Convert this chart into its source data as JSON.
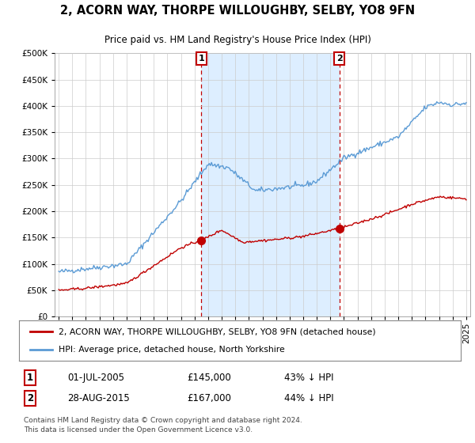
{
  "title": "2, ACORN WAY, THORPE WILLOUGHBY, SELBY, YO8 9FN",
  "subtitle": "Price paid vs. HM Land Registry's House Price Index (HPI)",
  "legend_line1": "2, ACORN WAY, THORPE WILLOUGHBY, SELBY, YO8 9FN (detached house)",
  "legend_line2": "HPI: Average price, detached house, North Yorkshire",
  "sale1_label": "1",
  "sale1_date": "01-JUL-2005",
  "sale1_price": "£145,000",
  "sale1_note": "43% ↓ HPI",
  "sale2_label": "2",
  "sale2_date": "28-AUG-2015",
  "sale2_price": "£167,000",
  "sale2_note": "44% ↓ HPI",
  "footer": "Contains HM Land Registry data © Crown copyright and database right 2024.\nThis data is licensed under the Open Government Licence v3.0.",
  "hpi_color": "#5b9bd5",
  "hpi_fill_color": "#ddeeff",
  "price_color": "#c00000",
  "sale_marker_color": "#c00000",
  "vline_color": "#c00000",
  "grid_color": "#cccccc",
  "bg_color": "#ffffff",
  "ylim": [
    0,
    500000
  ],
  "yticks": [
    0,
    50000,
    100000,
    150000,
    200000,
    250000,
    300000,
    350000,
    400000,
    450000,
    500000
  ],
  "sale1_year": 2005.5,
  "sale1_value": 145000,
  "sale2_year": 2015.67,
  "sale2_value": 167000,
  "xmin": 1995,
  "xmax": 2025
}
